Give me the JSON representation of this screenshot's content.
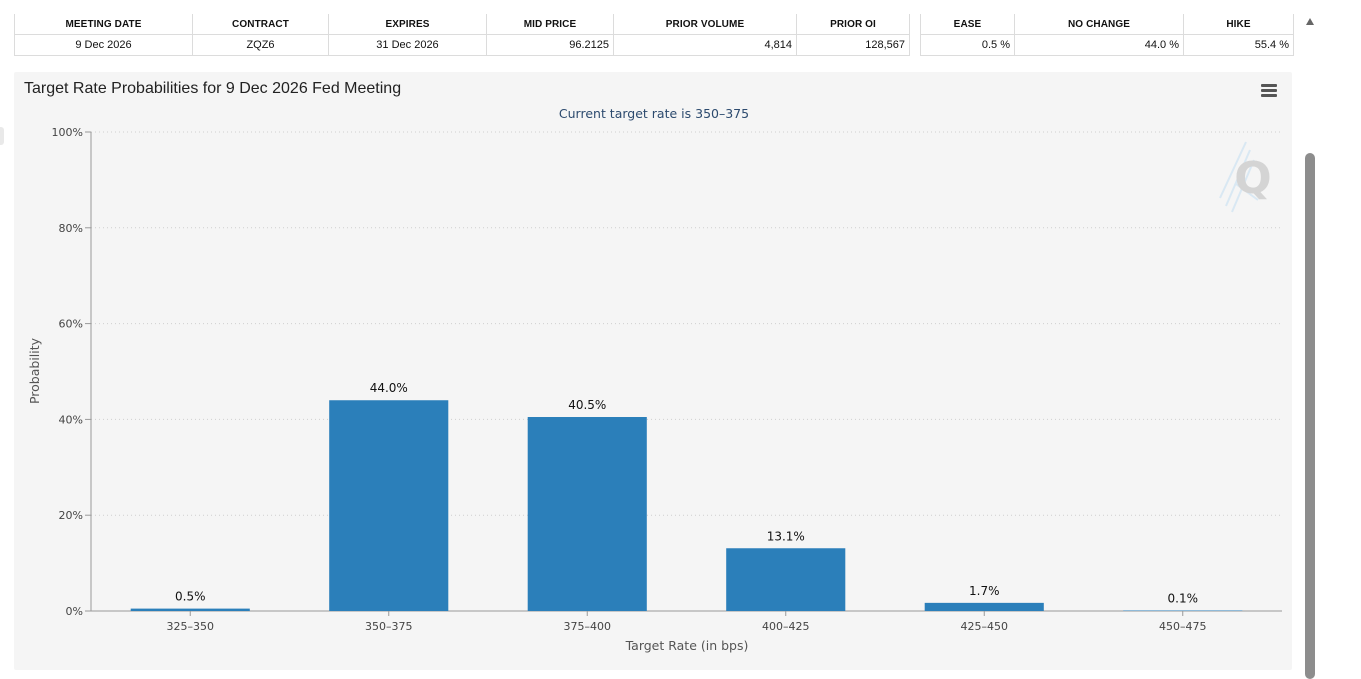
{
  "meeting_table": {
    "headers": [
      "MEETING DATE",
      "CONTRACT",
      "EXPIRES",
      "MID PRICE",
      "PRIOR VOLUME",
      "PRIOR OI"
    ],
    "row": [
      "9 Dec 2026",
      "ZQZ6",
      "31 Dec 2026",
      "96.2125",
      "4,814",
      "128,567"
    ]
  },
  "probability_table": {
    "headers": [
      "EASE",
      "NO CHANGE",
      "HIKE"
    ],
    "row": [
      "0.5 %",
      "44.0 %",
      "55.4 %"
    ]
  },
  "chart_menu_icon": "hamburger-menu-icon",
  "watermark_icon": "q-logo-watermark",
  "chart_data": {
    "type": "bar",
    "title": "Target Rate Probabilities for 9 Dec 2026 Fed Meeting",
    "subtitle": "Current target rate is 350–375",
    "xlabel": "Target Rate (in bps)",
    "ylabel": "Probability",
    "categories": [
      "325–350",
      "350–375",
      "375–400",
      "400–425",
      "425–450",
      "450–475"
    ],
    "values": [
      0.5,
      44.0,
      40.5,
      13.1,
      1.7,
      0.1
    ],
    "data_labels": [
      "0.5%",
      "44.0%",
      "40.5%",
      "13.1%",
      "1.7%",
      "0.1%"
    ],
    "ylim": [
      0,
      100
    ],
    "y_ticks": [
      "0%",
      "20%",
      "40%",
      "60%",
      "80%",
      "100%"
    ],
    "y_tick_values": [
      0,
      20,
      40,
      60,
      80,
      100
    ],
    "grid": true,
    "bar_color": "#2b7fba"
  }
}
